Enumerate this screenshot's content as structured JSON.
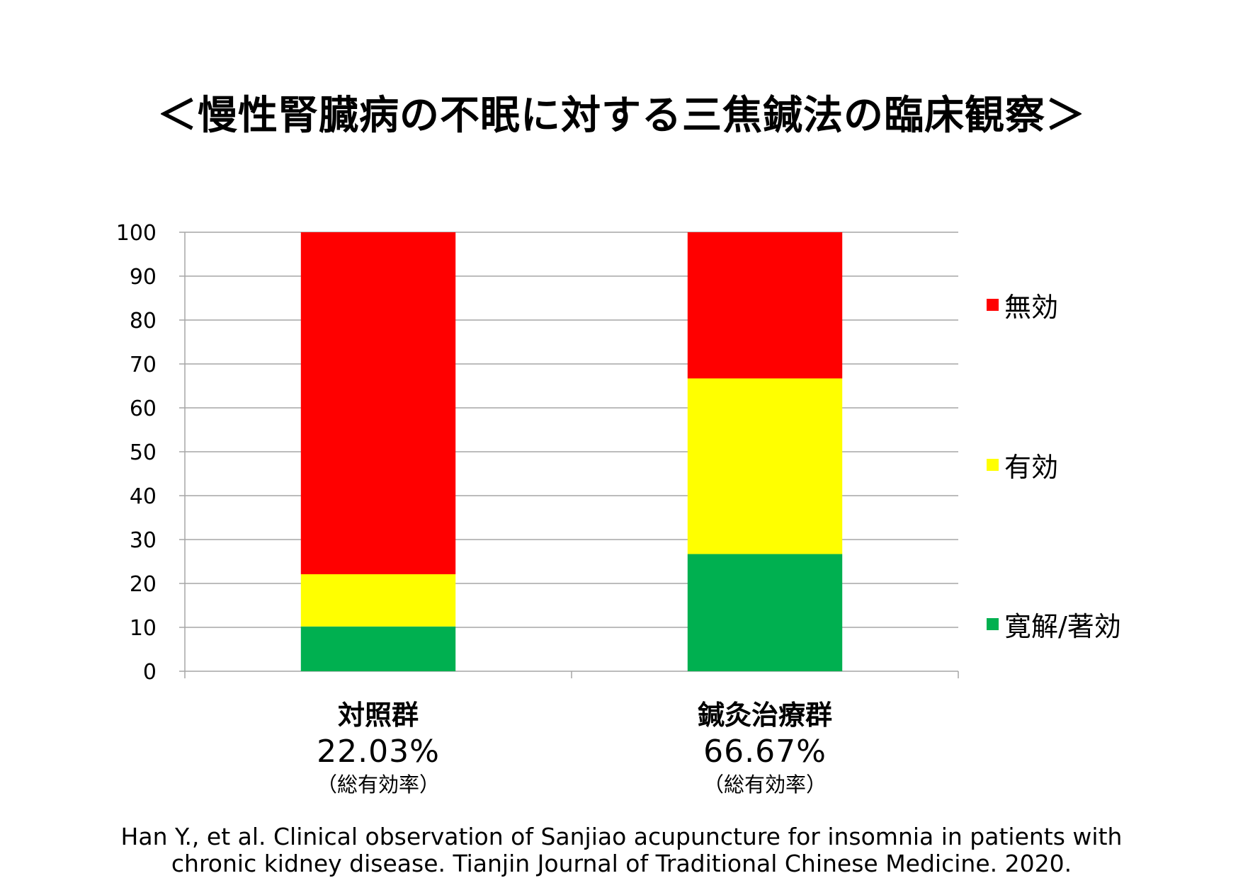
{
  "title": "＜慢性腎臓病の不眠に対する三焦鍼法の臨床観察＞",
  "chart_data": {
    "type": "bar",
    "stacked": true,
    "categories": [
      "対照群",
      "鍼灸治療群"
    ],
    "category_rates": [
      "22.03%",
      "66.67%"
    ],
    "category_rate_notes": [
      "（総有効率）",
      "（総有効率）"
    ],
    "series": [
      {
        "name": "寛解/著効",
        "color": "#00B050",
        "values": [
          10.2,
          26.7
        ]
      },
      {
        "name": "有効",
        "color": "#FFFF00",
        "values": [
          11.9,
          40.0
        ]
      },
      {
        "name": "無効",
        "color": "#FF0000",
        "values": [
          77.9,
          33.3
        ]
      }
    ],
    "ylim": [
      0,
      100
    ],
    "yticks": [
      0,
      10,
      20,
      30,
      40,
      50,
      60,
      70,
      80,
      90,
      100
    ],
    "grid": true,
    "legend_position": "right",
    "legend_order": [
      "無効",
      "有効",
      "寛解/著効"
    ]
  },
  "citation": {
    "line1": "Han Y., et al. Clinical observation of Sanjiao acupuncture for insomnia in patients with",
    "line2": "chronic kidney disease. Tianjin Journal of Traditional Chinese Medicine. 2020."
  }
}
